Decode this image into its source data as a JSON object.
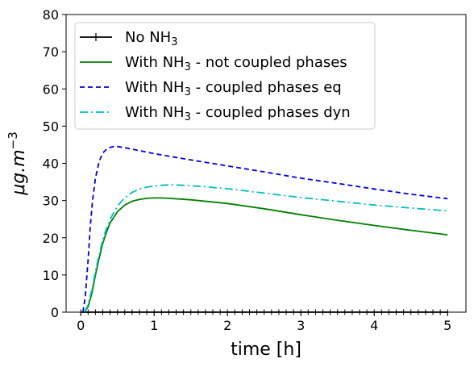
{
  "chart_data": {
    "type": "line",
    "xlabel": "time [h]",
    "ylabel_base": "μg.m",
    "ylabel_exp": "−3",
    "xlim": [
      -0.2,
      5.25
    ],
    "ylim": [
      0,
      80
    ],
    "xticks": [
      "0",
      "1",
      "2",
      "3",
      "4",
      "5"
    ],
    "yticks": [
      "0",
      "10",
      "20",
      "30",
      "40",
      "50",
      "60",
      "70",
      "80"
    ],
    "grid": false,
    "legend_position": "top-left",
    "series": [
      {
        "name": "No NH3",
        "legend_pre": "No NH",
        "legend_sub": "3",
        "legend_post": "",
        "color": "#000000",
        "dash": "",
        "marker": "tick",
        "x": [
          0,
          5
        ],
        "y": [
          0,
          0
        ]
      },
      {
        "name": "With NH3 - not coupled phases",
        "legend_pre": "With NH",
        "legend_sub": "3",
        "legend_post": " - not coupled phases",
        "color": "#008000",
        "dash": "",
        "marker": "",
        "x": [
          0.05,
          0.1,
          0.15,
          0.2,
          0.25,
          0.3,
          0.35,
          0.4,
          0.5,
          0.6,
          0.7,
          0.8,
          0.9,
          1.0,
          1.1,
          1.2,
          1.5,
          2.0,
          2.5,
          3.0,
          3.5,
          4.0,
          4.5,
          5.0
        ],
        "y": [
          0,
          1.5,
          5,
          10,
          14.5,
          18.5,
          21.5,
          24,
          27,
          28.8,
          29.8,
          30.3,
          30.6,
          30.7,
          30.7,
          30.6,
          30.2,
          29.2,
          27.8,
          26.2,
          24.7,
          23.3,
          22.0,
          20.8
        ]
      },
      {
        "name": "With NH3 - coupled phases eq",
        "legend_pre": "With NH",
        "legend_sub": "3",
        "legend_post": " - coupled phases eq",
        "color": "#0000dd",
        "dash": "6,4",
        "marker": "",
        "x": [
          0.03,
          0.06,
          0.1,
          0.13,
          0.16,
          0.2,
          0.25,
          0.3,
          0.35,
          0.4,
          0.45,
          0.5,
          0.6,
          0.8,
          1.0,
          1.5,
          2.0,
          2.5,
          3.0,
          3.5,
          4.0,
          4.5,
          5.0
        ],
        "y": [
          0,
          4,
          14,
          23,
          30,
          36,
          40.5,
          42.8,
          43.8,
          44.3,
          44.5,
          44.5,
          44.2,
          43.4,
          42.6,
          40.9,
          39.3,
          37.7,
          36.0,
          34.6,
          33.1,
          31.7,
          30.5
        ]
      },
      {
        "name": "With NH3 - coupled phases dyn",
        "legend_pre": "With NH",
        "legend_sub": "3",
        "legend_post": " - coupled phases dyn",
        "color": "#00bfbf",
        "dash": "10,4,2,4",
        "marker": "",
        "x": [
          0.05,
          0.1,
          0.15,
          0.2,
          0.25,
          0.3,
          0.35,
          0.4,
          0.5,
          0.6,
          0.7,
          0.8,
          0.9,
          1.0,
          1.1,
          1.2,
          1.3,
          1.5,
          2.0,
          2.5,
          3.0,
          3.5,
          4.0,
          4.5,
          5.0
        ],
        "y": [
          0,
          2,
          6,
          11,
          15.5,
          19.5,
          22.5,
          25,
          28.5,
          30.8,
          32.2,
          33.1,
          33.6,
          33.9,
          34.1,
          34.2,
          34.2,
          34.0,
          33.2,
          32.0,
          30.8,
          29.8,
          28.8,
          28.0,
          27.2
        ]
      }
    ]
  }
}
